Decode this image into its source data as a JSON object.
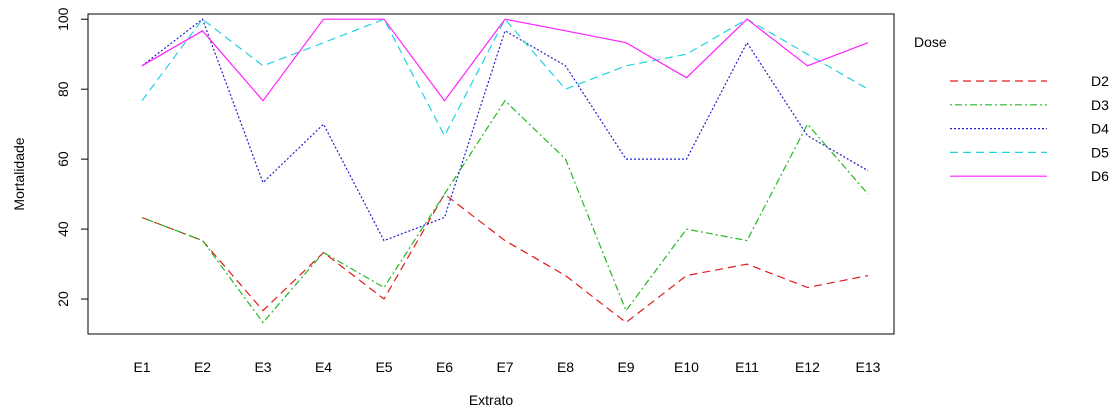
{
  "chart_data": {
    "type": "line",
    "title": "",
    "xlabel": "Extrato",
    "ylabel": "Mortalidade",
    "categories": [
      "E1",
      "E2",
      "E3",
      "E4",
      "E5",
      "E6",
      "E7",
      "E8",
      "E9",
      "E10",
      "E11",
      "E12",
      "E13"
    ],
    "yticks": [
      20,
      40,
      60,
      80,
      100
    ],
    "ylim": [
      10,
      101.5
    ],
    "grid": false,
    "legend": {
      "title": "Dose",
      "placement": "right"
    },
    "series": [
      {
        "name": "D2",
        "color": "#e41a1c",
        "dash": "dashed",
        "values": [
          43.3,
          36.7,
          16.7,
          33.3,
          20.0,
          50.0,
          36.7,
          26.7,
          13.3,
          26.7,
          30.0,
          23.3,
          26.7
        ]
      },
      {
        "name": "D3",
        "color": "#22b822",
        "dash": "dotdash",
        "values": [
          43.3,
          36.7,
          13.3,
          33.3,
          23.3,
          50.0,
          76.7,
          60.0,
          16.7,
          40.0,
          36.7,
          70.0,
          50.0
        ]
      },
      {
        "name": "D4",
        "color": "#2222cc",
        "dash": "dotted",
        "values": [
          86.7,
          100.0,
          53.3,
          70.0,
          36.7,
          43.3,
          96.7,
          86.7,
          60.0,
          60.0,
          93.3,
          66.7,
          56.7
        ]
      },
      {
        "name": "D5",
        "color": "#22d3e0",
        "dash": "dashed",
        "values": [
          76.7,
          100.0,
          86.7,
          93.3,
          100.0,
          66.7,
          100.0,
          80.0,
          86.7,
          90.0,
          100.0,
          90.0,
          80.0
        ]
      },
      {
        "name": "D6",
        "color": "#ff22ff",
        "dash": "solid",
        "values": [
          86.7,
          96.7,
          76.7,
          100.0,
          100.0,
          76.7,
          100.0,
          96.7,
          93.3,
          83.3,
          100.0,
          86.7,
          93.3
        ]
      }
    ]
  }
}
